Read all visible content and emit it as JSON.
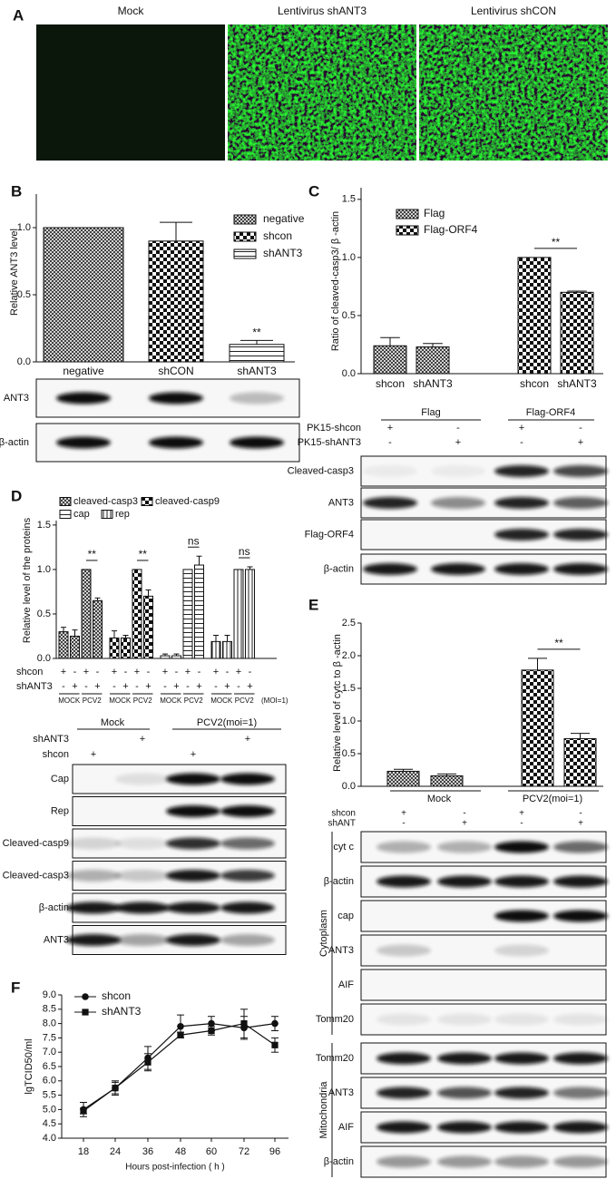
{
  "panel_a": {
    "letter": "A",
    "images": [
      "Mock",
      "Lentivirus shANT3",
      "Lentivirus shCON"
    ]
  },
  "chart_data": [
    {
      "type": "bar",
      "letter": "B",
      "ylabel": "Relative ANT3 level",
      "categories": [
        "negative",
        "shCON",
        "shANT3"
      ],
      "series": [
        {
          "name": "negative",
          "pattern": "crosshatch",
          "values": [
            1.0,
            null,
            null
          ],
          "errors": [
            null,
            null,
            null
          ]
        },
        {
          "name": "shcon",
          "pattern": "checker",
          "values": [
            null,
            0.9,
            null
          ],
          "errors": [
            null,
            0.14,
            null
          ]
        },
        {
          "name": "shANT3",
          "pattern": "hlines",
          "values": [
            null,
            null,
            0.13
          ],
          "errors": [
            null,
            null,
            0.03
          ]
        }
      ],
      "annotations": [
        "**"
      ],
      "ylim": [
        0,
        1.25
      ],
      "yticks": [
        {
          "value": 0,
          "label": "0.0"
        },
        0.5,
        {
          "value": 1,
          "label": "1.0"
        }
      ],
      "blot": {
        "rows": [
          "ANT3",
          "β-actin"
        ]
      }
    },
    {
      "type": "bar",
      "letter": "C",
      "ylabel": "Ratio of cleaved-casp3/ β -actin",
      "categories": [
        "shcon",
        "shANT3",
        "shcon",
        "shANT3"
      ],
      "series": [
        {
          "name": "Flag",
          "pattern": "crosshatch",
          "values": [
            0.24,
            0.23,
            null,
            null
          ],
          "errors": [
            0.07,
            0.03,
            null,
            null
          ]
        },
        {
          "name": "Flag-ORF4",
          "pattern": "checker",
          "values": [
            null,
            null,
            1.0,
            0.7
          ],
          "errors": [
            null,
            null,
            null,
            0.01
          ]
        }
      ],
      "annotations": [
        "**"
      ],
      "ylim": [
        0,
        1.6
      ],
      "yticks": [
        {
          "value": 0,
          "label": "0.0"
        },
        0.5,
        {
          "value": 1,
          "label": "1.0"
        },
        1.5
      ],
      "blot": {
        "groups": [
          "Flag",
          "Flag-ORF4"
        ],
        "conditions": [
          {
            "label": "PK15-shcon",
            "signs": [
              "+",
              "-",
              "+",
              "-"
            ]
          },
          {
            "label": "PK15-shANT3",
            "signs": [
              "-",
              "+",
              "-",
              "+"
            ]
          }
        ],
        "rows": [
          "Cleaved-casp3",
          "ANT3",
          "Flag-ORF4",
          "β-actin"
        ]
      }
    },
    {
      "type": "bar",
      "letter": "D",
      "ylabel": "Relative level of the proteins",
      "series": [
        {
          "name": "cleaved-casp3",
          "pattern": "crosshatch",
          "values": [
            0.3,
            0.25,
            1.0,
            0.65
          ],
          "errors": [
            0.05,
            0.07,
            null,
            0.03
          ]
        },
        {
          "name": "cleaved-casp9",
          "pattern": "checker",
          "values": [
            0.23,
            0.23,
            1.0,
            0.7
          ],
          "errors": [
            0.08,
            0.03,
            null,
            0.07
          ]
        },
        {
          "name": "cap",
          "pattern": "hlines",
          "values": [
            0.03,
            0.03,
            1.0,
            1.05
          ],
          "errors": [
            0.02,
            0.02,
            null,
            0.1
          ]
        },
        {
          "name": "rep",
          "pattern": "vlines",
          "values": [
            0.19,
            0.19,
            1.0,
            1.0
          ],
          "errors": [
            0.07,
            0.07,
            null,
            0.03
          ]
        }
      ],
      "annotations": [
        "**",
        "**",
        "ns",
        "ns"
      ],
      "ylim": [
        0,
        1.55
      ],
      "yticks": [
        {
          "value": 0,
          "label": "0.0"
        },
        0.5,
        {
          "value": 1,
          "label": "1.0"
        },
        1.5
      ],
      "conditions": [
        {
          "label": "shcon",
          "signs": [
            "+",
            "-",
            "+",
            "-",
            "+",
            "-",
            "+",
            "-",
            "+",
            "-",
            "+",
            "-",
            "+",
            "-",
            "+",
            "-"
          ]
        },
        {
          "label": "shANT3",
          "signs": [
            "-",
            "+",
            "-",
            "+",
            "-",
            "+",
            "-",
            "+",
            "-",
            "+",
            "-",
            "+",
            "-",
            "+",
            "-",
            "+"
          ]
        }
      ],
      "sublabels": [
        "MOCK",
        "PCV2",
        "MOCK",
        "PCV2",
        "MOCK",
        "PCV2",
        "MOCK",
        "PCV2"
      ],
      "note": "(MOI=1)",
      "blot": {
        "groups": [
          "Mock",
          "PCV2(moi=1)"
        ],
        "conditions": [
          {
            "label": "shANT3",
            "signs": [
              null,
              "+",
              null,
              "+"
            ]
          },
          {
            "label": "shcon",
            "signs": [
              "+",
              null,
              "+",
              null
            ]
          }
        ],
        "rows": [
          "Cap",
          "Rep",
          "Cleaved-casp9",
          "Cleaved-casp3",
          "β-actin",
          "ANT3"
        ]
      }
    },
    {
      "type": "bar",
      "letter": "E",
      "ylabel": "Relative level of cytc to β -actin",
      "values": [
        0.23,
        0.16,
        1.78,
        0.73
      ],
      "errors": [
        0.03,
        0.03,
        0.18,
        0.08
      ],
      "patterns": [
        "crosshatch",
        "crosshatch",
        "checker",
        "checker"
      ],
      "annotations": [
        "**"
      ],
      "ylim": [
        0,
        2.5
      ],
      "yticks": [
        {
          "value": 0,
          "label": "0.0"
        },
        0.5,
        {
          "value": 1,
          "label": "1.0"
        },
        1.5,
        {
          "value": 2,
          "label": "2.0"
        },
        2.5
      ],
      "groups": [
        "Mock",
        "PCV2(moi=1)"
      ],
      "conditions": [
        {
          "label": "shcon",
          "signs": [
            "+",
            "-",
            "+",
            "-"
          ]
        },
        {
          "label": "shANT",
          "signs": [
            "-",
            "+",
            "-",
            "+"
          ]
        }
      ],
      "blot": {
        "sections": [
          {
            "label": "Cytoplasm",
            "rows": [
              "cyt c",
              "β-actin",
              "cap",
              "ANT3",
              "AIF",
              "Tomm20"
            ]
          },
          {
            "label": "Mitochondria",
            "rows": [
              "Tomm20",
              "ANT3",
              "AIF",
              "β-actin"
            ]
          }
        ]
      }
    },
    {
      "type": "line",
      "letter": "F",
      "ylabel": "lgTCID50/ml",
      "xlabel": "Hours post-infection ( h )",
      "categories": [
        18,
        24,
        36,
        48,
        60,
        72,
        96
      ],
      "series": [
        {
          "name": "shcon",
          "marker": "circle",
          "values": [
            5.0,
            5.75,
            6.8,
            7.9,
            8.0,
            7.85,
            8.0
          ],
          "errors": [
            0.25,
            0.25,
            0.4,
            0.4,
            0.25,
            0.4,
            0.25
          ]
        },
        {
          "name": "shANT3",
          "marker": "square",
          "values": [
            4.95,
            5.75,
            6.65,
            7.6,
            7.75,
            8.0,
            7.25
          ],
          "errors": [
            0.1,
            0.2,
            0.3,
            0.1,
            0.15,
            0.5,
            0.25
          ]
        }
      ],
      "ylim": [
        4,
        9
      ],
      "yticks": [
        {
          "value": 4,
          "label": "4.0"
        },
        4.5,
        {
          "value": 5,
          "label": "5.0"
        },
        5.5,
        {
          "value": 6,
          "label": "6.0"
        },
        6.5,
        {
          "value": 7,
          "label": "7.0"
        },
        7.5,
        {
          "value": 8,
          "label": "8.0"
        },
        8.5,
        {
          "value": 9,
          "label": "9.0"
        }
      ]
    }
  ]
}
